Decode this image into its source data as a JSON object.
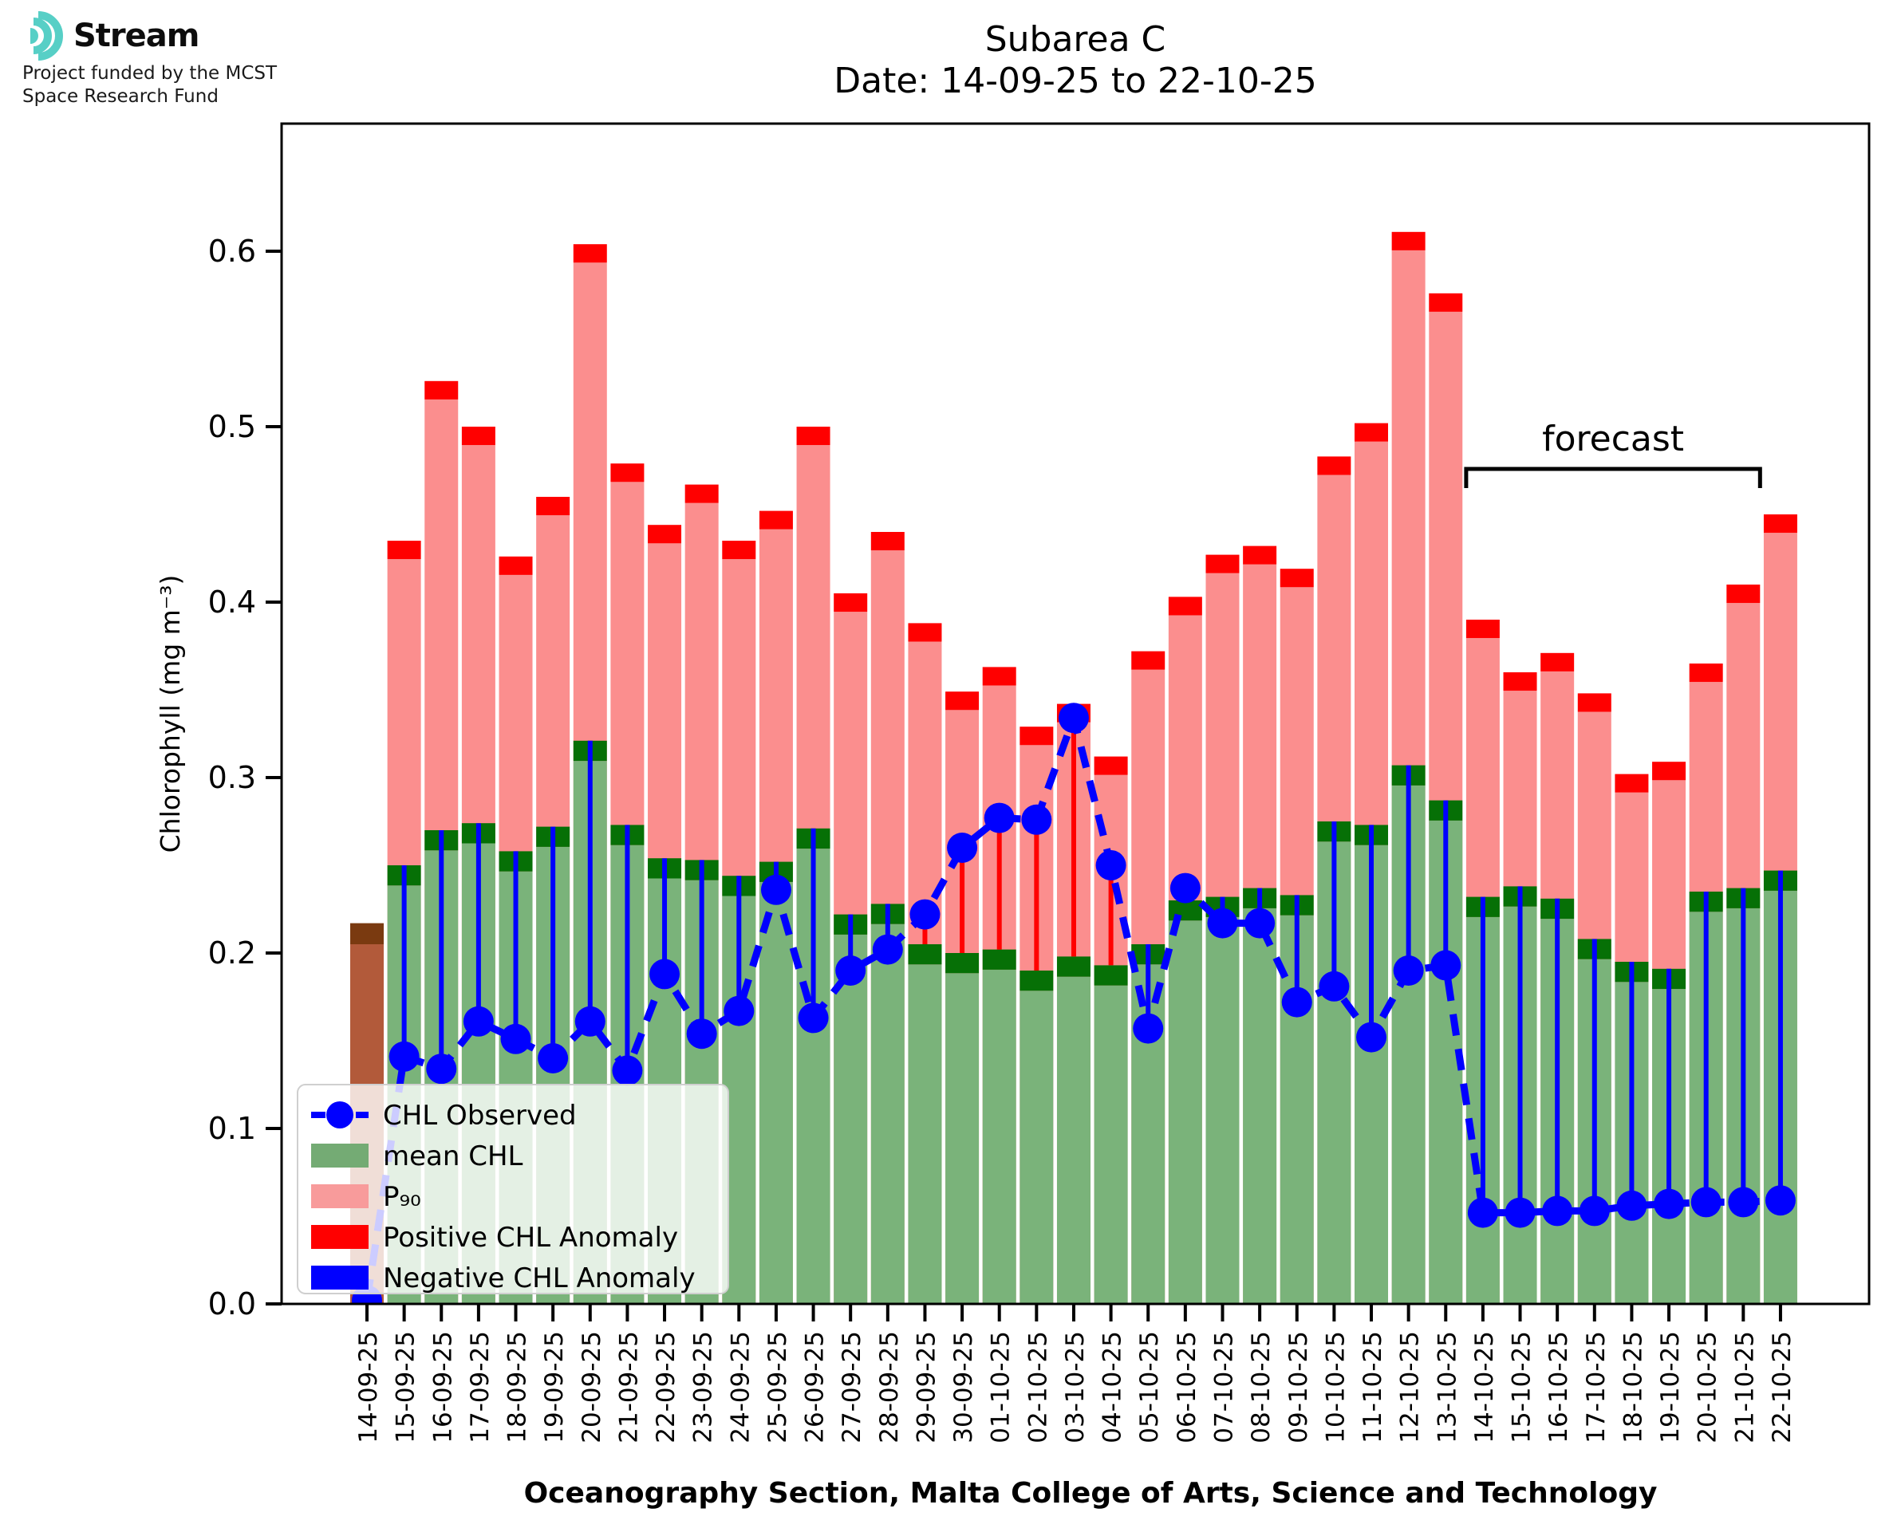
{
  "logo": {
    "name": "Stream",
    "subtitle_line1": "Project funded by the MCST",
    "subtitle_line2": "Space Research Fund",
    "icon": "ripple-waves-icon",
    "icon_color": "#57cfc6"
  },
  "header": {
    "title": "Subarea C",
    "subtitle": "Date: 14-09-25 to 22-10-25"
  },
  "caption": "Oceanography Section, Malta College of Arts, Science and Technology",
  "colors": {
    "p90_fill": "#fb8e8e",
    "p90_cap": "#ff0000",
    "mean_fill": "#7ab37a",
    "mean_cap": "#067006",
    "observed": "#0000ff",
    "positive_anomaly": "#ff0000",
    "negative_anomaly": "#0000ff",
    "missing_bar_fill": "#b25a3a",
    "missing_bar_cap": "#7a3a10",
    "axis": "#000000",
    "legend_border": "#cfcfcf"
  },
  "chart_data": {
    "type": "bar",
    "title": "Subarea C",
    "subtitle": "Date: 14-09-25 to 22-10-25",
    "xlabel": "Oceanography Section, Malta College of Arts, Science and Technology",
    "ylabel": "Chlorophyll (mg m⁻³)",
    "ylim": [
      0.0,
      0.672
    ],
    "yticks": [
      "0.0",
      "0.1",
      "0.2",
      "0.3",
      "0.4",
      "0.5",
      "0.6"
    ],
    "grid": false,
    "legend_position": "lower left",
    "categories": [
      "14-09-25",
      "15-09-25",
      "16-09-25",
      "17-09-25",
      "18-09-25",
      "19-09-25",
      "20-09-25",
      "21-09-25",
      "22-09-25",
      "23-09-25",
      "24-09-25",
      "25-09-25",
      "26-09-25",
      "27-09-25",
      "28-09-25",
      "29-09-25",
      "30-09-25",
      "01-10-25",
      "02-10-25",
      "03-10-25",
      "04-10-25",
      "05-10-25",
      "06-10-25",
      "07-10-25",
      "08-10-25",
      "09-10-25",
      "10-10-25",
      "11-10-25",
      "12-10-25",
      "13-10-25",
      "14-10-25",
      "15-10-25",
      "16-10-25",
      "17-10-25",
      "18-10-25",
      "19-10-25",
      "20-10-25",
      "21-10-25",
      "22-10-25"
    ],
    "series": [
      {
        "name": "P₉₀",
        "render": "bar",
        "color": "#fb8e8e",
        "cap_color": "#ff0000",
        "values": [
          0.217,
          0.435,
          0.526,
          0.5,
          0.426,
          0.46,
          0.604,
          0.479,
          0.444,
          0.467,
          0.435,
          0.452,
          0.5,
          0.405,
          0.44,
          0.388,
          0.349,
          0.363,
          0.329,
          0.342,
          0.312,
          0.372,
          0.403,
          0.427,
          0.432,
          0.419,
          0.483,
          0.502,
          0.611,
          0.576,
          0.39,
          0.36,
          0.371,
          0.348,
          0.302,
          0.309,
          0.365,
          0.41,
          0.45
        ]
      },
      {
        "name": "mean CHL",
        "render": "bar",
        "color": "#7ab37a",
        "cap_color": "#067006",
        "values": [
          null,
          0.25,
          0.27,
          0.274,
          0.258,
          0.272,
          0.321,
          0.273,
          0.254,
          0.253,
          0.244,
          0.252,
          0.271,
          0.222,
          0.228,
          0.205,
          0.2,
          0.202,
          0.19,
          0.198,
          0.193,
          0.205,
          0.23,
          0.232,
          0.237,
          0.233,
          0.275,
          0.273,
          0.307,
          0.287,
          0.232,
          0.238,
          0.231,
          0.208,
          0.195,
          0.191,
          0.235,
          0.237,
          0.247
        ]
      },
      {
        "name": "CHL Observed",
        "render": "dashed-line-markers",
        "color": "#0000ff",
        "values": [
          0.002,
          0.141,
          0.134,
          0.161,
          0.151,
          0.14,
          0.161,
          0.133,
          0.188,
          0.154,
          0.167,
          0.236,
          0.163,
          0.19,
          0.202,
          0.222,
          0.26,
          0.277,
          0.276,
          0.334,
          0.25,
          0.157,
          0.237,
          0.217,
          0.217,
          0.172,
          0.181,
          0.152,
          0.19,
          0.193,
          0.052,
          0.052,
          0.053,
          0.053,
          0.056,
          0.057,
          0.058,
          0.058,
          0.059
        ]
      }
    ],
    "anomaly": {
      "positive_color": "#ff0000",
      "negative_color": "#0000ff"
    },
    "missing_bar": {
      "index": 0,
      "date": "14-09-25",
      "value": 0.217,
      "fill": "#b25a3a",
      "cap": "#7a3a10"
    },
    "forecast": {
      "label": "forecast",
      "start_index": 30,
      "start_date": "14-10-25",
      "end_date": "22-10-25"
    }
  },
  "legend": {
    "items": [
      {
        "label": "CHL Observed",
        "swatch": "line-marker",
        "color": "#0000ff"
      },
      {
        "label": "mean CHL",
        "swatch": "rect",
        "color": "#74ab74"
      },
      {
        "label": "P₉₀",
        "swatch": "rect",
        "color": "#f89b9b"
      },
      {
        "label": "Positive CHL Anomaly",
        "swatch": "rect",
        "color": "#ff0000"
      },
      {
        "label": "Negative CHL Anomaly",
        "swatch": "rect",
        "color": "#0000ff"
      }
    ]
  }
}
